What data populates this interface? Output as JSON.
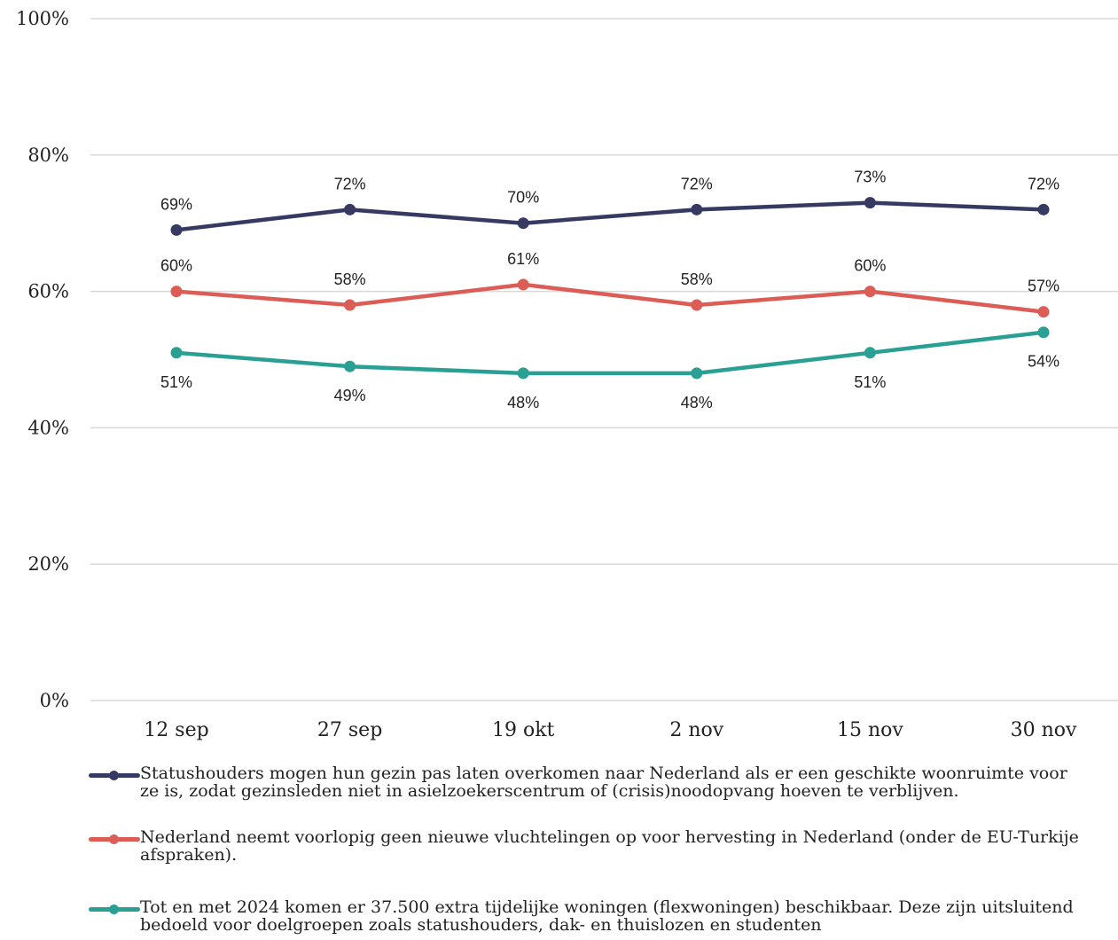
{
  "chart_data": {
    "type": "line",
    "categories": [
      "12 sep",
      "27 sep",
      "19 okt",
      "2 nov",
      "15 nov",
      "30 nov"
    ],
    "yticks": [
      "0%",
      "20%",
      "40%",
      "60%",
      "80%",
      "100%"
    ],
    "ylim": [
      0,
      100
    ],
    "grid": true,
    "legend_position": "bottom",
    "series": [
      {
        "name": "Statushouders mogen hun gezin pas laten overkomen naar Nederland als er een geschikte woonruimte voor ze is, zodat gezinsleden niet in asielzoekerscentrum of (crisis)noodopvang hoeven te verblijven.",
        "color": "#363a63",
        "values": [
          69,
          72,
          70,
          72,
          73,
          72
        ],
        "labels": [
          "69%",
          "72%",
          "70%",
          "72%",
          "73%",
          "72%"
        ],
        "label_position": "above"
      },
      {
        "name": "Nederland neemt voorlopig geen nieuwe vluchtelingen op voor hervesting in Nederland (onder de EU-Turkije afspraken).",
        "color": "#dc5d55",
        "values": [
          60,
          58,
          61,
          58,
          60,
          57
        ],
        "labels": [
          "60%",
          "58%",
          "61%",
          "58%",
          "60%",
          "57%"
        ],
        "label_position": "above"
      },
      {
        "name": "Tot en met 2024 komen er 37.500 extra tijdelijke woningen (flexwoningen) beschikbaar. Deze zijn uitsluitend bedoeld voor doelgroepen zoals statushouders, dak- en thuislozen en studenten",
        "color": "#2a9f93",
        "values": [
          51,
          49,
          48,
          48,
          51,
          54
        ],
        "labels": [
          "51%",
          "49%",
          "48%",
          "48%",
          "51%",
          "54%"
        ],
        "label_position": "below"
      }
    ]
  }
}
